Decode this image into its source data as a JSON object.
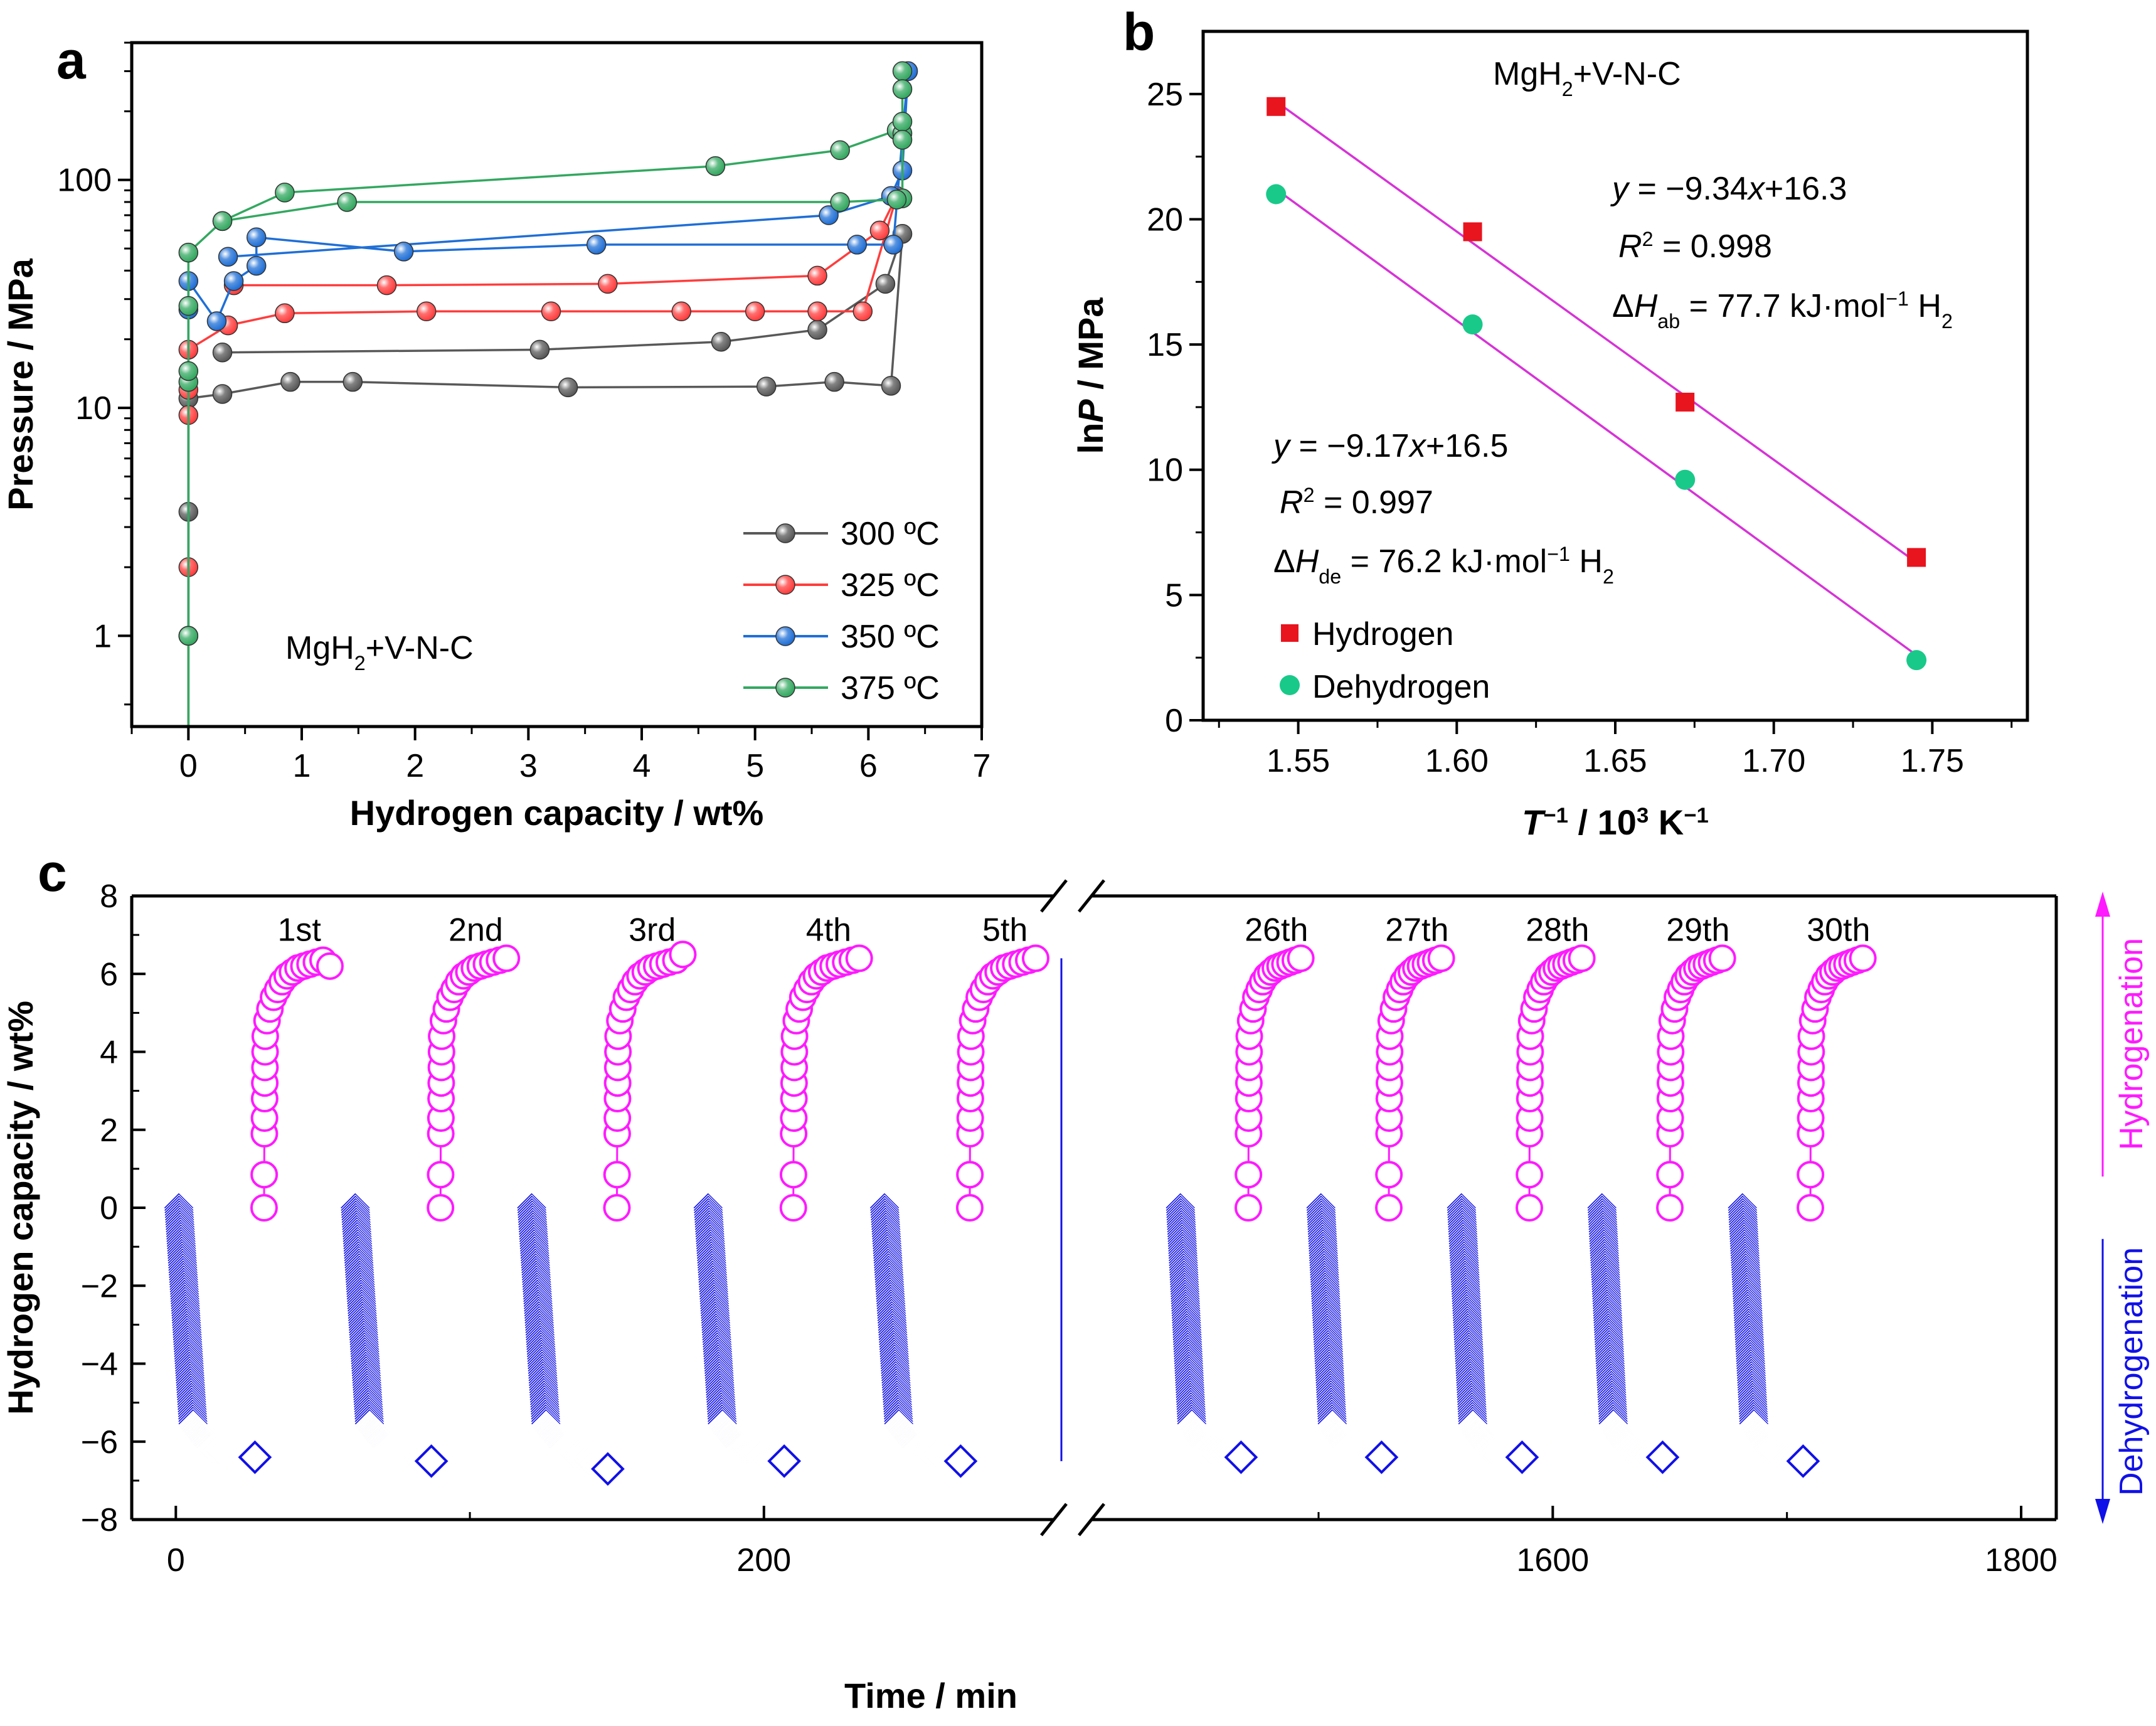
{
  "chart_data": [
    {
      "panel": "a",
      "type": "line",
      "title": "",
      "annotation": "MgH2+V-N-C",
      "xlabel": "Hydrogen capacity / wt%",
      "ylabel": "Pressure / MPa",
      "yscale": "log",
      "xlim": [
        -0.5,
        7
      ],
      "ylim": [
        0.4,
        400
      ],
      "xticks": [
        "0",
        "1",
        "2",
        "3",
        "4",
        "5",
        "6",
        "7"
      ],
      "yticks": [
        "1",
        "10",
        "100"
      ],
      "legend_position": "bottom-right",
      "series": [
        {
          "name": "300 ºC",
          "color": "#595959",
          "points": [
            [
              0.0,
              0.4
            ],
            [
              0.0,
              1.0
            ],
            [
              0.0,
              3.5
            ],
            [
              0.0,
              11.0
            ],
            [
              0.3,
              11.5
            ],
            [
              0.9,
              13.0
            ],
            [
              1.45,
              13.0
            ],
            [
              3.35,
              12.3
            ],
            [
              5.1,
              12.4
            ],
            [
              5.7,
              13.0
            ],
            [
              6.2,
              12.5
            ],
            [
              6.3,
              58.0
            ],
            [
              6.15,
              35.0
            ],
            [
              5.55,
              22.0
            ],
            [
              4.7,
              19.5
            ],
            [
              3.1,
              18.0
            ],
            [
              0.3,
              17.5
            ]
          ]
        },
        {
          "name": "325 ºC",
          "color": "#ff3d3d",
          "points": [
            [
              0.0,
              0.4
            ],
            [
              0.0,
              2.0
            ],
            [
              0.0,
              9.3
            ],
            [
              0.0,
              12.0
            ],
            [
              0.0,
              18.0
            ],
            [
              0.35,
              23.0
            ],
            [
              0.85,
              26.0
            ],
            [
              2.1,
              26.5
            ],
            [
              3.2,
              26.5
            ],
            [
              4.35,
              26.5
            ],
            [
              5.0,
              26.5
            ],
            [
              5.55,
              26.5
            ],
            [
              5.95,
              26.5
            ],
            [
              6.25,
              85.0
            ],
            [
              6.1,
              60.0
            ],
            [
              5.55,
              38.0
            ],
            [
              3.7,
              35.0
            ],
            [
              1.75,
              34.5
            ],
            [
              0.4,
              34.5
            ]
          ]
        },
        {
          "name": "350 ºC",
          "color": "#1f6fd6",
          "points": [
            [
              0.0,
              1.0
            ],
            [
              0.0,
              27.0
            ],
            [
              0.0,
              36.0
            ],
            [
              0.25,
              24.0
            ],
            [
              0.4,
              36.0
            ],
            [
              0.6,
              42.0
            ],
            [
              0.6,
              56.0
            ],
            [
              1.9,
              48.5
            ],
            [
              3.6,
              52.0
            ],
            [
              5.9,
              52.0
            ],
            [
              6.22,
              52.0
            ],
            [
              6.35,
              300.0
            ],
            [
              6.3,
              110.0
            ],
            [
              6.2,
              85.0
            ],
            [
              5.65,
              70.0
            ],
            [
              0.35,
              46.0
            ]
          ]
        },
        {
          "name": "375 ºC",
          "color": "#33a860",
          "points": [
            [
              0.0,
              0.4
            ],
            [
              0.0,
              1.0
            ],
            [
              0.0,
              13.0
            ],
            [
              0.0,
              14.5
            ],
            [
              0.0,
              28.0
            ],
            [
              0.0,
              48.0
            ],
            [
              0.3,
              66.0
            ],
            [
              0.85,
              88.0
            ],
            [
              4.65,
              115.0
            ],
            [
              5.75,
              135.0
            ],
            [
              6.25,
              165.0
            ],
            [
              6.3,
              160.0
            ],
            [
              6.3,
              300.0
            ],
            [
              6.3,
              250.0
            ],
            [
              6.3,
              180.0
            ],
            [
              6.3,
              150.0
            ],
            [
              6.3,
              83.0
            ],
            [
              6.25,
              82.0
            ],
            [
              5.75,
              80.0
            ],
            [
              1.4,
              80.0
            ],
            [
              0.3,
              66.0
            ]
          ]
        }
      ]
    },
    {
      "panel": "b",
      "type": "scatter",
      "title": "",
      "annotation": "MgH2+V-N-C",
      "xlabel": "T−1 / 103 K−1",
      "ylabel": "lnP / MPa",
      "xlim": [
        1.52,
        1.78
      ],
      "ylim": [
        0,
        27.5
      ],
      "xticks": [
        "1.55",
        "1.60",
        "1.65",
        "1.70",
        "1.75"
      ],
      "yticks": [
        "0",
        "5",
        "10",
        "15",
        "20",
        "25"
      ],
      "fit_color": "#d633d6",
      "legend_position": "bottom-left",
      "series": [
        {
          "name": "Hydrogen",
          "color": "#e8141e",
          "marker": "square",
          "x": [
            1.543,
            1.605,
            1.672,
            1.745
          ],
          "y": [
            24.5,
            19.5,
            12.7,
            6.5
          ],
          "fit": {
            "equation": "y = −9.34x+16.3",
            "r2": "R2 = 0.998",
            "dH": "ΔHab = 77.7 kJ·mol−1 H2",
            "x": [
              1.543,
              1.745
            ],
            "y": [
              24.7,
              6.3
            ]
          }
        },
        {
          "name": "Dehydrogen",
          "color": "#19c98a",
          "marker": "circle",
          "x": [
            1.543,
            1.605,
            1.672,
            1.745
          ],
          "y": [
            21.0,
            15.8,
            9.6,
            2.4
          ],
          "fit": {
            "equation": "y = −9.17x+16.5",
            "r2": "R2 = 0.997",
            "dH": "ΔHde = 76.2 kJ·mol−1 H2",
            "x": [
              1.543,
              1.745
            ],
            "y": [
              21.2,
              2.6
            ]
          }
        }
      ]
    },
    {
      "panel": "c",
      "type": "scatter",
      "title": "",
      "xlabel": "Time / min",
      "ylabel": "Hydrogen capacity / wt%",
      "broken_axis": true,
      "segments": [
        {
          "xlim": [
            -15,
            305
          ],
          "xticks": [
            "0",
            "200"
          ],
          "xtick_values": [
            0,
            200
          ]
        },
        {
          "xlim": [
            1395,
            1815
          ],
          "xticks": [
            "1600",
            "1800"
          ],
          "xtick_values": [
            1600,
            1800
          ]
        }
      ],
      "ylim": [
        -8,
        8
      ],
      "yticks": [
        "8",
        "6",
        "4",
        "2",
        "0",
        "−2",
        "−4",
        "−6",
        "−8"
      ],
      "cycle_labels": [
        "1st",
        "2nd",
        "3rd",
        "4th",
        "5th",
        "26th",
        "27th",
        "28th",
        "29th",
        "30th"
      ],
      "hydrogenation_color": "#ff1aff",
      "dehydrogenation_color": "#1010e8",
      "side_labels": {
        "hydrogenation": "Hydrogenation",
        "dehydrogenation": "Dehydrogenation"
      },
      "dehydrogenation_start_min": [
        0,
        60,
        120,
        180,
        240,
        1440,
        1500,
        1560,
        1620,
        1680
      ],
      "hydrogenation_start_min": [
        30,
        90,
        150,
        210,
        270,
        1470,
        1530,
        1590,
        1650,
        1710
      ],
      "final_dehydrogenated_wt": [
        -6.4,
        -6.5,
        -6.7,
        -6.5,
        -6.5,
        -6.4,
        -6.4,
        -6.4,
        -6.4,
        -6.5
      ],
      "final_hydrogenated_wt": [
        6.2,
        6.4,
        6.5,
        6.4,
        6.4,
        6.4,
        6.4,
        6.4,
        6.4,
        6.4
      ]
    }
  ]
}
